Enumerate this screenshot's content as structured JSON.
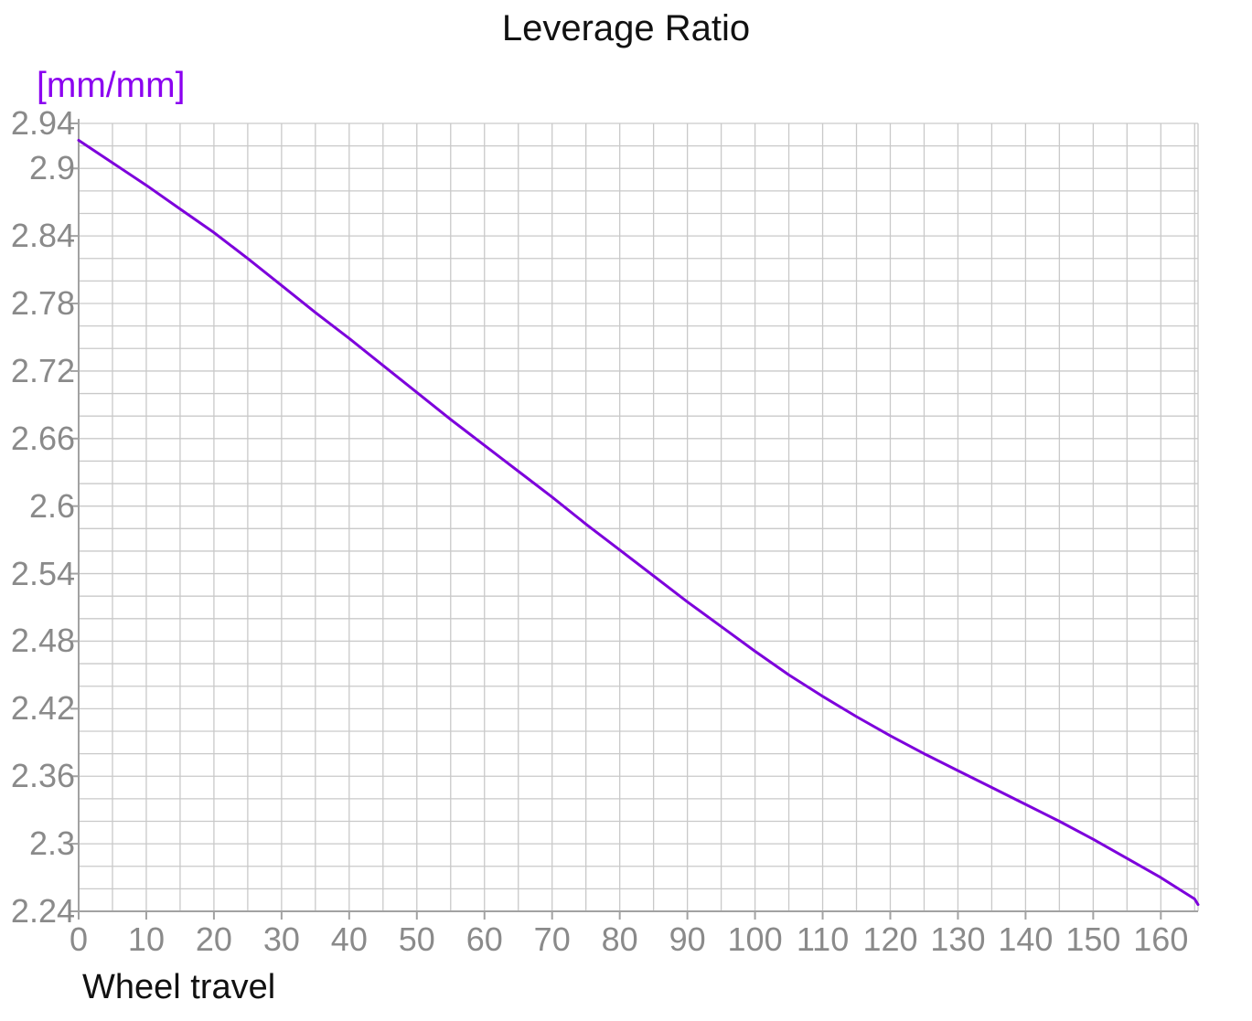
{
  "chart_data": {
    "type": "line",
    "title": "Leverage Ratio",
    "xlabel": "Wheel travel",
    "ylabel": "[mm/mm]",
    "xlim": [
      0,
      165.5
    ],
    "ylim": [
      2.24,
      2.94
    ],
    "grid": true,
    "legend": false,
    "x_grid_step": 5,
    "y_grid_step": 0.02,
    "x_ticks": [
      {
        "value": 0,
        "label": "0"
      },
      {
        "value": 10,
        "label": "10"
      },
      {
        "value": 20,
        "label": "20"
      },
      {
        "value": 30,
        "label": "30"
      },
      {
        "value": 40,
        "label": "40"
      },
      {
        "value": 50,
        "label": "50"
      },
      {
        "value": 60,
        "label": "60"
      },
      {
        "value": 70,
        "label": "70"
      },
      {
        "value": 80,
        "label": "80"
      },
      {
        "value": 90,
        "label": "90"
      },
      {
        "value": 100,
        "label": "100"
      },
      {
        "value": 110,
        "label": "110"
      },
      {
        "value": 120,
        "label": "120"
      },
      {
        "value": 130,
        "label": "130"
      },
      {
        "value": 140,
        "label": "140"
      },
      {
        "value": 150,
        "label": "150"
      },
      {
        "value": 160,
        "label": "160"
      }
    ],
    "y_ticks": [
      {
        "value": 2.94,
        "label": "2.94"
      },
      {
        "value": 2.9,
        "label": "2.9"
      },
      {
        "value": 2.84,
        "label": "2.84"
      },
      {
        "value": 2.78,
        "label": "2.78"
      },
      {
        "value": 2.72,
        "label": "2.72"
      },
      {
        "value": 2.66,
        "label": "2.66"
      },
      {
        "value": 2.6,
        "label": "2.6"
      },
      {
        "value": 2.54,
        "label": "2.54"
      },
      {
        "value": 2.48,
        "label": "2.48"
      },
      {
        "value": 2.42,
        "label": "2.42"
      },
      {
        "value": 2.36,
        "label": "2.36"
      },
      {
        "value": 2.3,
        "label": "2.3"
      },
      {
        "value": 2.24,
        "label": "2.24"
      }
    ],
    "series": [
      {
        "name": "Leverage Ratio",
        "x": [
          0,
          5,
          10,
          15,
          20,
          25,
          30,
          35,
          40,
          45,
          50,
          55,
          60,
          65,
          70,
          75,
          80,
          85,
          90,
          95,
          100,
          105,
          110,
          115,
          120,
          125,
          130,
          135,
          140,
          145,
          150,
          155,
          160,
          165,
          165.5
        ],
        "y": [
          2.925,
          2.905,
          2.885,
          2.864,
          2.843,
          2.82,
          2.796,
          2.772,
          2.749,
          2.725,
          2.701,
          2.677,
          2.654,
          2.631,
          2.608,
          2.584,
          2.561,
          2.538,
          2.515,
          2.493,
          2.471,
          2.45,
          2.431,
          2.413,
          2.396,
          2.38,
          2.365,
          2.35,
          2.335,
          2.32,
          2.304,
          2.287,
          2.27,
          2.251,
          2.246
        ]
      }
    ]
  },
  "colors": {
    "line": "#7d00dc",
    "unit_label": "#8b00f0",
    "tick_text": "#8a8a8a",
    "grid": "#c9c9c9",
    "axis": "#a2a2a2",
    "title_text": "#111111"
  }
}
